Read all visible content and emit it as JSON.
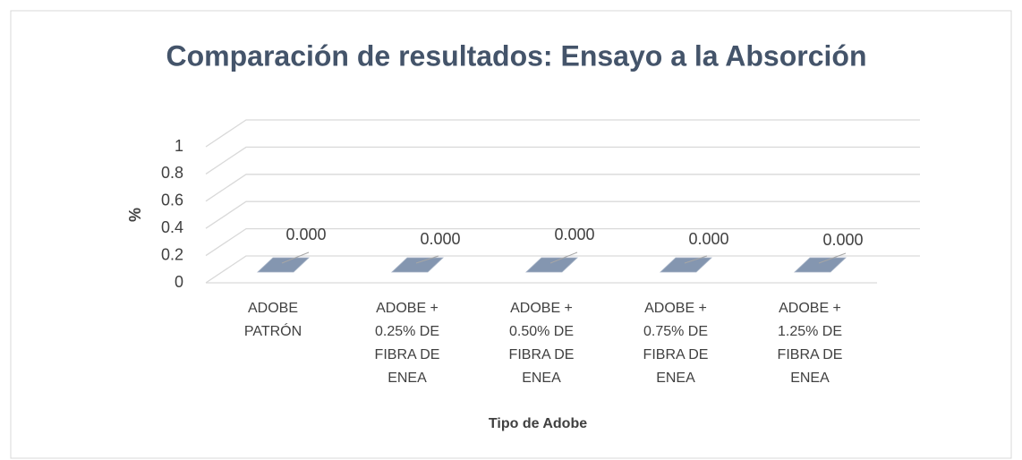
{
  "chart_data": {
    "type": "bar3d",
    "title": "Comparación de resultados: Ensayo a la Absorción",
    "x_label": "Tipo de Adobe",
    "y_label": "%",
    "categories": [
      "ADOBE PATRÓN",
      "ADOBE + 0.25% DE FIBRA DE ENEA",
      "ADOBE + 0.50% DE FIBRA DE ENEA",
      "ADOBE + 0.75% DE FIBRA DE ENEA",
      "ADOBE + 1.25% DE FIBRA DE ENEA"
    ],
    "values": [
      0,
      0,
      0,
      0,
      0
    ],
    "value_labels": [
      "0.000",
      "0.000",
      "0.000",
      "0.000",
      "0.000"
    ],
    "color": "#8496b0",
    "ylim": [
      0,
      1
    ],
    "yticks": [
      0,
      0.2,
      0.4,
      0.6,
      0.8,
      1
    ],
    "grid": true
  }
}
